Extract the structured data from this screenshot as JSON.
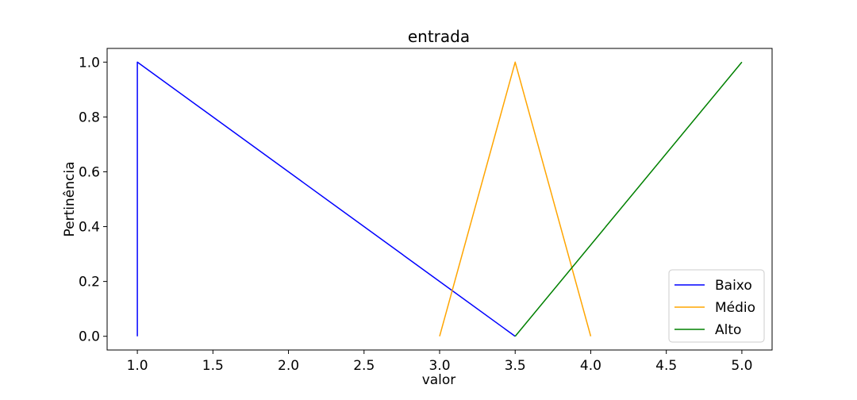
{
  "chart_data": {
    "type": "line",
    "title": "entrada",
    "xlabel": "valor",
    "ylabel": "Pertinência",
    "xlim": [
      0.8,
      5.2
    ],
    "ylim": [
      -0.05,
      1.05
    ],
    "xticks": [
      1.0,
      1.5,
      2.0,
      2.5,
      3.0,
      3.5,
      4.0,
      4.5,
      5.0
    ],
    "xtick_labels": [
      "1.0",
      "1.5",
      "2.0",
      "2.5",
      "3.0",
      "3.5",
      "4.0",
      "4.5",
      "5.0"
    ],
    "yticks": [
      0.0,
      0.2,
      0.4,
      0.6,
      0.8,
      1.0
    ],
    "ytick_labels": [
      "0.0",
      "0.2",
      "0.4",
      "0.6",
      "0.8",
      "1.0"
    ],
    "grid": false,
    "legend_position": "bottom-right",
    "series": [
      {
        "name": "Baixo",
        "color": "#0000ff",
        "x": [
          1.0,
          1.0,
          3.5
        ],
        "y": [
          0.0,
          1.0,
          0.0
        ]
      },
      {
        "name": "Médio",
        "color": "#ffa500",
        "x": [
          3.0,
          3.5,
          4.0
        ],
        "y": [
          0.0,
          1.0,
          0.0
        ]
      },
      {
        "name": "Alto",
        "color": "#008000",
        "x": [
          3.5,
          5.0
        ],
        "y": [
          0.0,
          1.0
        ]
      }
    ]
  }
}
